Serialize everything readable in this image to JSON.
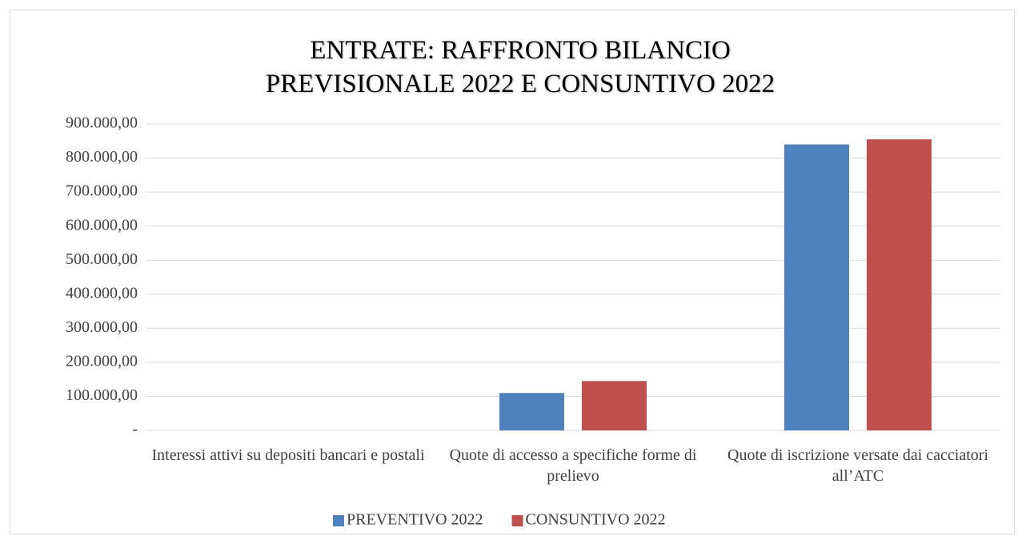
{
  "chart_data": {
    "type": "bar",
    "title": "ENTRATE: RAFFRONTO BILANCIO PREVISIONALE 2022 E CONSUNTIVO 2022",
    "categories": [
      "Interessi attivi su depositi bancari e postali",
      "Quote di accesso a specifiche forme di prelievo",
      "Quote di iscrizione versate dai cacciatori all’ATC"
    ],
    "series": [
      {
        "name": "PREVENTIVO 2022",
        "color": "#4f81bd",
        "values": [
          0,
          110000,
          840000
        ]
      },
      {
        "name": "CONSUNTIVO 2022",
        "color": "#c0504d",
        "values": [
          0,
          145000,
          855000
        ]
      }
    ],
    "ylim": [
      0,
      900000
    ],
    "yticks": [
      {
        "value": 0,
        "label": "-"
      },
      {
        "value": 100000,
        "label": "100.000,00"
      },
      {
        "value": 200000,
        "label": "200.000,00"
      },
      {
        "value": 300000,
        "label": "300.000,00"
      },
      {
        "value": 400000,
        "label": "400.000,00"
      },
      {
        "value": 500000,
        "label": "500.000,00"
      },
      {
        "value": 600000,
        "label": "600.000,00"
      },
      {
        "value": 700000,
        "label": "700.000,00"
      },
      {
        "value": 800000,
        "label": "800.000,00"
      },
      {
        "value": 900000,
        "label": "900.000,00"
      }
    ],
    "grid": true,
    "legend": "bottom"
  }
}
